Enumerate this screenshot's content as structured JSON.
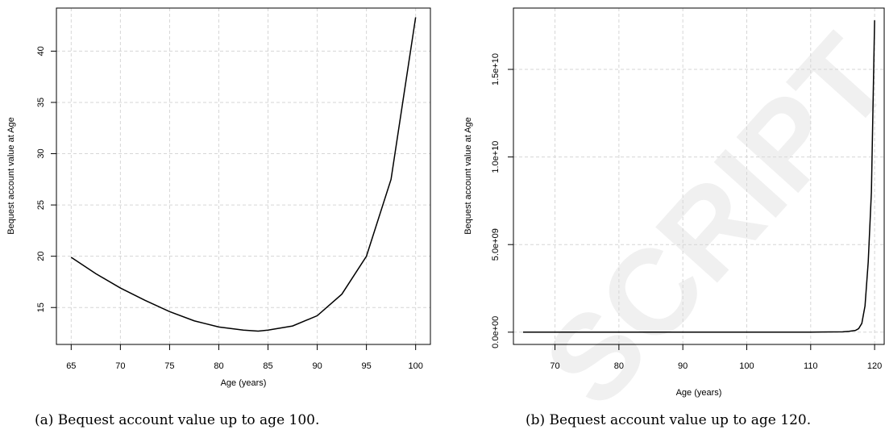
{
  "watermark": "SCRIPT",
  "charts": [
    {
      "chart_data": {
        "type": "line",
        "xlabel": "Age (years)",
        "ylabel": "Bequest account value at Age",
        "xlim": [
          63.5,
          101.5
        ],
        "ylim": [
          11.4,
          44.2
        ],
        "xticks": [
          65,
          70,
          75,
          80,
          85,
          90,
          95,
          100
        ],
        "yticks": [
          15,
          20,
          25,
          30,
          35,
          40
        ],
        "xtick_labels": [
          "65",
          "70",
          "75",
          "80",
          "85",
          "90",
          "95",
          "100"
        ],
        "ytick_labels": [
          "15",
          "20",
          "25",
          "30",
          "35",
          "40"
        ],
        "grid": true,
        "series": [
          {
            "x": [
              65,
              67.5,
              70,
              72.5,
              75,
              77.5,
              80,
              82.5,
              84,
              85,
              87.5,
              90,
              92.5,
              95,
              97.5,
              100
            ],
            "y": [
              19.9,
              18.3,
              16.9,
              15.7,
              14.6,
              13.7,
              13.1,
              12.8,
              12.7,
              12.8,
              13.2,
              14.2,
              16.3,
              20.0,
              27.5,
              43.3
            ]
          }
        ]
      },
      "caption": "(a) Bequest account value up to age 100."
    },
    {
      "chart_data": {
        "type": "line",
        "xlabel": "Age (years)",
        "ylabel": "Bequest account value at Age",
        "xlim": [
          63.5,
          121.5
        ],
        "ylim": [
          -700000000,
          18500000000
        ],
        "xticks": [
          70,
          80,
          90,
          100,
          110,
          120
        ],
        "yticks": [
          0,
          5000000000,
          10000000000,
          15000000000
        ],
        "xtick_labels": [
          "70",
          "80",
          "90",
          "100",
          "110",
          "120"
        ],
        "ytick_labels": [
          "0.0e+00",
          "5.0e+09",
          "1.0e+10",
          "1.5e+10"
        ],
        "grid": true,
        "series": [
          {
            "x": [
              65,
              80,
              100,
              110,
              115,
              116,
              117,
              117.5,
              118,
              118.5,
              119,
              119.5,
              120
            ],
            "y": [
              20,
              20,
              43,
              1000,
              20000000,
              50000000,
              100000000,
              200000000,
              500000000,
              1500000000,
              4000000000,
              8000000000,
              17800000000
            ]
          }
        ]
      },
      "caption": "(b) Bequest account value up to age 120."
    }
  ]
}
